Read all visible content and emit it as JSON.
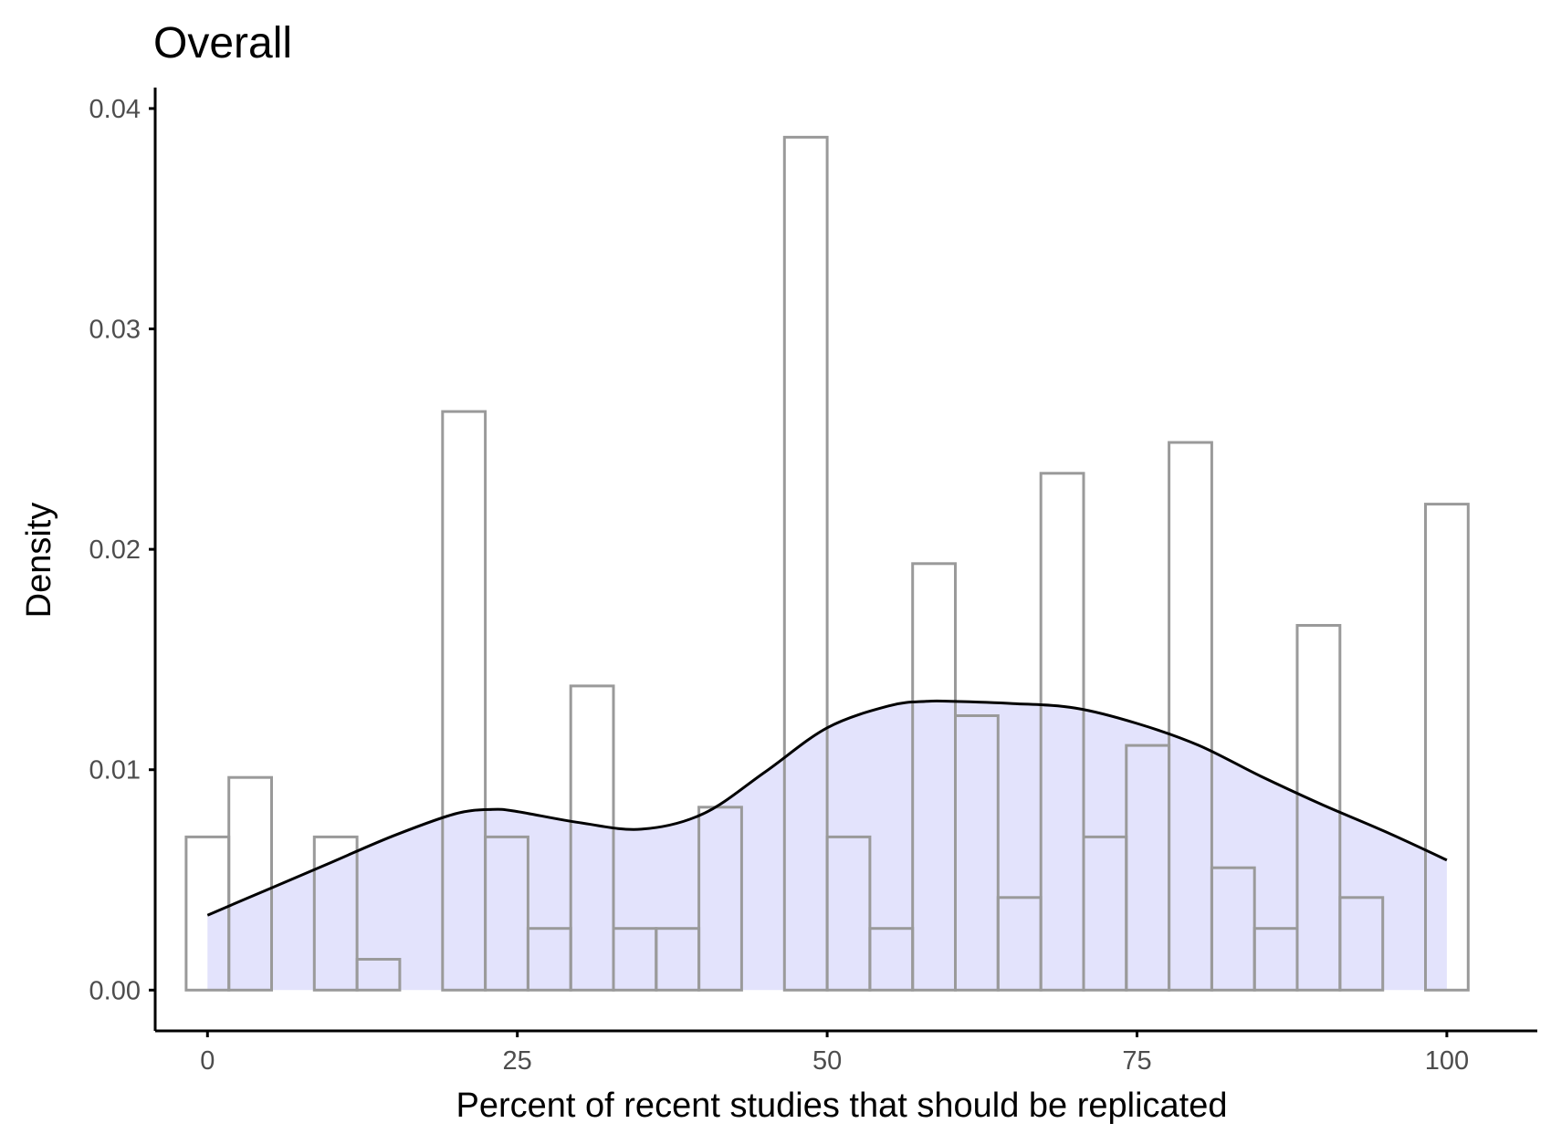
{
  "chart_data": {
    "type": "bar",
    "subtype": "histogram-with-density",
    "title": "Overall",
    "xlabel": "Percent of recent studies that should be replicated",
    "ylabel": "Density",
    "xlim": [
      -4.22,
      107.3
    ],
    "ylim": [
      -0.00185,
      0.04095
    ],
    "x_ticks": [
      0,
      25,
      50,
      75,
      100
    ],
    "x_tick_labels": [
      "0",
      "25",
      "50",
      "75",
      "100"
    ],
    "y_ticks": [
      0,
      0.01,
      0.02,
      0.03,
      0.04
    ],
    "y_tick_labels": [
      "0.00",
      "0.01",
      "0.02",
      "0.03",
      "0.04"
    ],
    "grid": false,
    "legend": "none",
    "colors": {
      "bar_outline": "#9a9a9a",
      "bar_fill": "none",
      "density_fill": "#c8c8fa",
      "density_line": "#000000",
      "axis": "#000000",
      "tick_label": "#4d4d4d"
    },
    "histogram": {
      "overlapping_binnings": true,
      "series": [
        {
          "bin_width": 3.448,
          "bins": [
            {
              "x0": -1.724,
              "x1": 1.724,
              "density": 0.00695
            },
            {
              "x0": 8.621,
              "x1": 12.069,
              "density": 0.00695
            },
            {
              "x0": 18.966,
              "x1": 22.414,
              "density": 0.02625
            },
            {
              "x0": 29.31,
              "x1": 32.759,
              "density": 0.0138
            },
            {
              "x0": 39.655,
              "x1": 43.103,
              "density": 0.0083
            },
            {
              "x0": 46.552,
              "x1": 50.0,
              "density": 0.0387
            },
            {
              "x0": 50.0,
              "x1": 53.448,
              "density": 0.00695
            },
            {
              "x0": 53.448,
              "x1": 56.897,
              "density": 0.0028
            },
            {
              "x0": 56.897,
              "x1": 60.345,
              "density": 0.01935
            },
            {
              "x0": 60.345,
              "x1": 63.793,
              "density": 0.01245
            },
            {
              "x0": 63.793,
              "x1": 67.241,
              "density": 0.0042
            },
            {
              "x0": 67.241,
              "x1": 70.69,
              "density": 0.02345
            },
            {
              "x0": 70.69,
              "x1": 74.138,
              "density": 0.00695
            },
            {
              "x0": 74.138,
              "x1": 77.586,
              "density": 0.0111
            },
            {
              "x0": 77.586,
              "x1": 81.034,
              "density": 0.02485
            },
            {
              "x0": 81.034,
              "x1": 84.483,
              "density": 0.00555
            },
            {
              "x0": 84.483,
              "x1": 87.931,
              "density": 0.0028
            },
            {
              "x0": 87.931,
              "x1": 91.379,
              "density": 0.01655
            },
            {
              "x0": 91.379,
              "x1": 94.828,
              "density": 0.0042
            },
            {
              "x0": 98.276,
              "x1": 101.724,
              "density": 0.02205
            }
          ]
        },
        {
          "bin_width": 3.448,
          "bins": [
            {
              "x0": 1.724,
              "x1": 5.172,
              "density": 0.00965
            },
            {
              "x0": 12.069,
              "x1": 15.517,
              "density": 0.0014
            },
            {
              "x0": 22.414,
              "x1": 25.862,
              "density": 0.00695
            },
            {
              "x0": 25.862,
              "x1": 29.31,
              "density": 0.0028
            },
            {
              "x0": 32.759,
              "x1": 36.207,
              "density": 0.0028
            },
            {
              "x0": 36.207,
              "x1": 39.655,
              "density": 0.0028
            }
          ]
        }
      ]
    },
    "density": {
      "x": [
        0,
        5,
        10,
        15,
        20,
        23,
        25,
        30,
        35,
        40,
        45,
        50,
        55,
        58,
        60,
        65,
        70,
        75,
        80,
        85,
        90,
        95,
        100
      ],
      "y": [
        0.0034,
        0.0046,
        0.0058,
        0.007,
        0.008,
        0.0082,
        0.0081,
        0.0076,
        0.0073,
        0.008,
        0.0099,
        0.0119,
        0.0129,
        0.0131,
        0.0131,
        0.013,
        0.0128,
        0.0121,
        0.0111,
        0.0097,
        0.0084,
        0.0072,
        0.0059
      ]
    }
  }
}
